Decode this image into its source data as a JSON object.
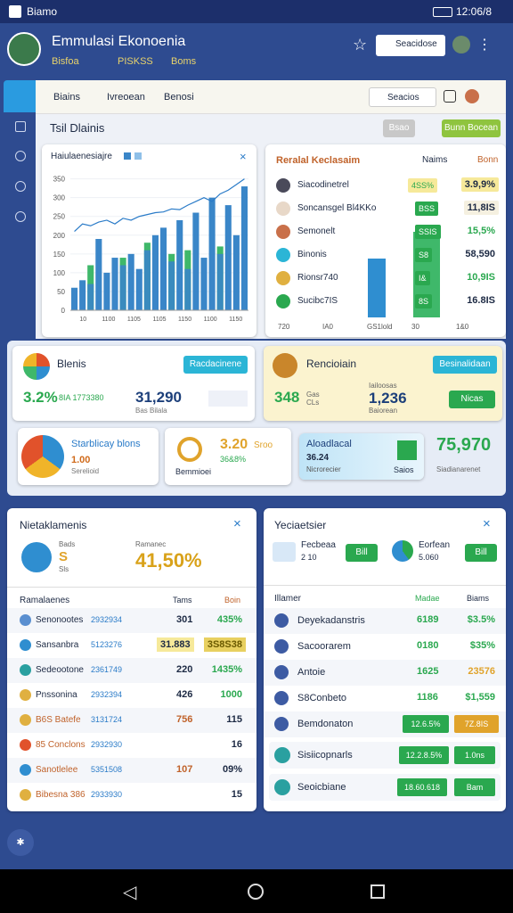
{
  "status_bar": {
    "app": "Biamo",
    "time": "12:06/8"
  },
  "header": {
    "title": "Emmulasi Ekonoenia",
    "tags": [
      "Bisfoa",
      "PISKSS",
      "Boms"
    ],
    "search": "Seacidose"
  },
  "toolbar": {
    "tabs": [
      "Biains",
      "Ivreoean",
      "Benosi"
    ],
    "search": "Seacios"
  },
  "section": {
    "title": "Tsil Dlainis",
    "buttons": [
      "Bsao",
      "Bunn Bocean"
    ]
  },
  "chart": {
    "title": "Haiulaenesiajre",
    "ylim": [
      0,
      380
    ],
    "yticks": [
      0,
      50,
      100,
      150,
      200,
      250,
      300,
      350
    ],
    "x_labels": [
      "10",
      "1100",
      "1105",
      "1105",
      "1150",
      "1100",
      "1150"
    ],
    "bars": [
      60,
      80,
      70,
      190,
      100,
      140,
      120,
      150,
      110,
      160,
      200,
      220,
      130,
      240,
      110,
      260,
      140,
      300,
      150,
      280,
      200,
      330
    ],
    "highlight": [
      null,
      null,
      120,
      null,
      null,
      null,
      140,
      null,
      null,
      180,
      null,
      null,
      150,
      null,
      160,
      null,
      null,
      null,
      170,
      null,
      null,
      null
    ],
    "line": [
      210,
      230,
      225,
      235,
      240,
      230,
      245,
      240,
      250,
      255,
      260,
      262,
      270,
      268,
      280,
      290,
      300,
      290,
      310,
      320,
      335,
      350
    ]
  },
  "ranking": {
    "title": "Reralal Keclasaim",
    "columns": [
      "Naims",
      "Bonn"
    ],
    "rows": [
      {
        "name": "Siacodinetrel",
        "badge": "4SS%",
        "value": "3.9,9%"
      },
      {
        "name": "Soncansgel Bl4KKo",
        "badge": "BSS",
        "value": "11,8IS"
      },
      {
        "name": "Semonelt",
        "badge": "SSIS",
        "value": "15,5%"
      },
      {
        "name": "Binonis",
        "badge": "S8",
        "value": "58,590"
      },
      {
        "name": "Rionsr740",
        "badge": "I&",
        "value": "10,9IS"
      },
      {
        "name": "Sucibc7IS",
        "badge": "8S",
        "value": "16.8IS"
      }
    ],
    "footer": [
      "720",
      "IA0",
      "GS1lold",
      "30",
      "1&0"
    ]
  },
  "kpi": {
    "blenis": {
      "title": "Blenis",
      "button": "Racdacinene",
      "big": "3.2%",
      "sub": "8IA 1773380",
      "big2": "31,290",
      "sub2": "Bas Bilala"
    },
    "rencioiain": {
      "title": "Rencioiain",
      "button": "Besinalidaan",
      "big": "348",
      "sub": "Gas CLs",
      "label": "Iailoosas",
      "big2": "1,236",
      "sub2": "Baiorean",
      "button2": "Nicas"
    },
    "starblicay": {
      "title": "Starblicay blons",
      "big": "1.00",
      "sub": "Serelioid"
    },
    "sroo": {
      "big": "3.20",
      "unit": "Sroo",
      "sub": "36&8%",
      "label": "Bemmioei"
    },
    "aloadlacal": {
      "title": "Aloadlacal",
      "big": "36.24",
      "sub": "Nicrorecier",
      "label": "Saios"
    },
    "total": {
      "big": "75,970",
      "sub": "Siadianarenet"
    }
  },
  "left_panel": {
    "title": "Nietaklamenis",
    "stat1_label": "Bads",
    "stat1_value": "S",
    "stat1_sub": "Sls",
    "stat2_label": "Ramanec",
    "stat2_value": "41,50%",
    "columns": [
      "Ramalaenes",
      "Tams",
      "Boin"
    ],
    "rows": [
      {
        "name": "Senonootes",
        "code": "2932934",
        "v1": "301",
        "v2": "435%"
      },
      {
        "name": "Sansanbra",
        "code": "5123276",
        "v1": "31.883",
        "v2": "3S8S38"
      },
      {
        "name": "Sedeootone",
        "code": "2361749",
        "v1": "220",
        "v2": "1435%"
      },
      {
        "name": "Pnssonina",
        "code": "2932394",
        "v1": "426",
        "v2": "1000"
      },
      {
        "name": "B6S Batefe",
        "code": "3131724",
        "v1": "756",
        "v2": "115"
      },
      {
        "name": "85 Conclons",
        "code": "2932930",
        "v2": "16"
      },
      {
        "name": "Sanotlelee",
        "code": "5351508",
        "v1": "107",
        "v2": "09%"
      },
      {
        "name": "Bibesna 386",
        "code": "2933930",
        "v2": "15"
      }
    ]
  },
  "right_panel": {
    "title": "Yeciaetsier",
    "item1_name": "Fecbeaa",
    "item1_value": "2 10",
    "item1_button": "Bill",
    "item2_name": "Eorfean",
    "item2_value": "5.060",
    "item2_button": "Bill",
    "columns": [
      "Illamer",
      "Madae",
      "Biams"
    ],
    "rows": [
      {
        "name": "Deyekadanstris",
        "v1": "6189",
        "v2": "$3.5%"
      },
      {
        "name": "Sacoorarem",
        "v1": "0180",
        "v2": "$35%"
      },
      {
        "name": "Antoie",
        "v1": "1625",
        "v2": "23576"
      },
      {
        "name": "S8Conbeto",
        "v1": "1186",
        "v2": "$1,559"
      },
      {
        "name": "Bemdonaton",
        "v1": "12.6.5%",
        "v2": "7Z.8IS"
      }
    ],
    "extra_rows": [
      {
        "name": "Sisiicopnarls",
        "v1": "12.2.8.5%",
        "v2": "1.0ns"
      },
      {
        "name": "Seoicbiane",
        "v1": "18.60.618",
        "v2": "Bam"
      }
    ]
  }
}
